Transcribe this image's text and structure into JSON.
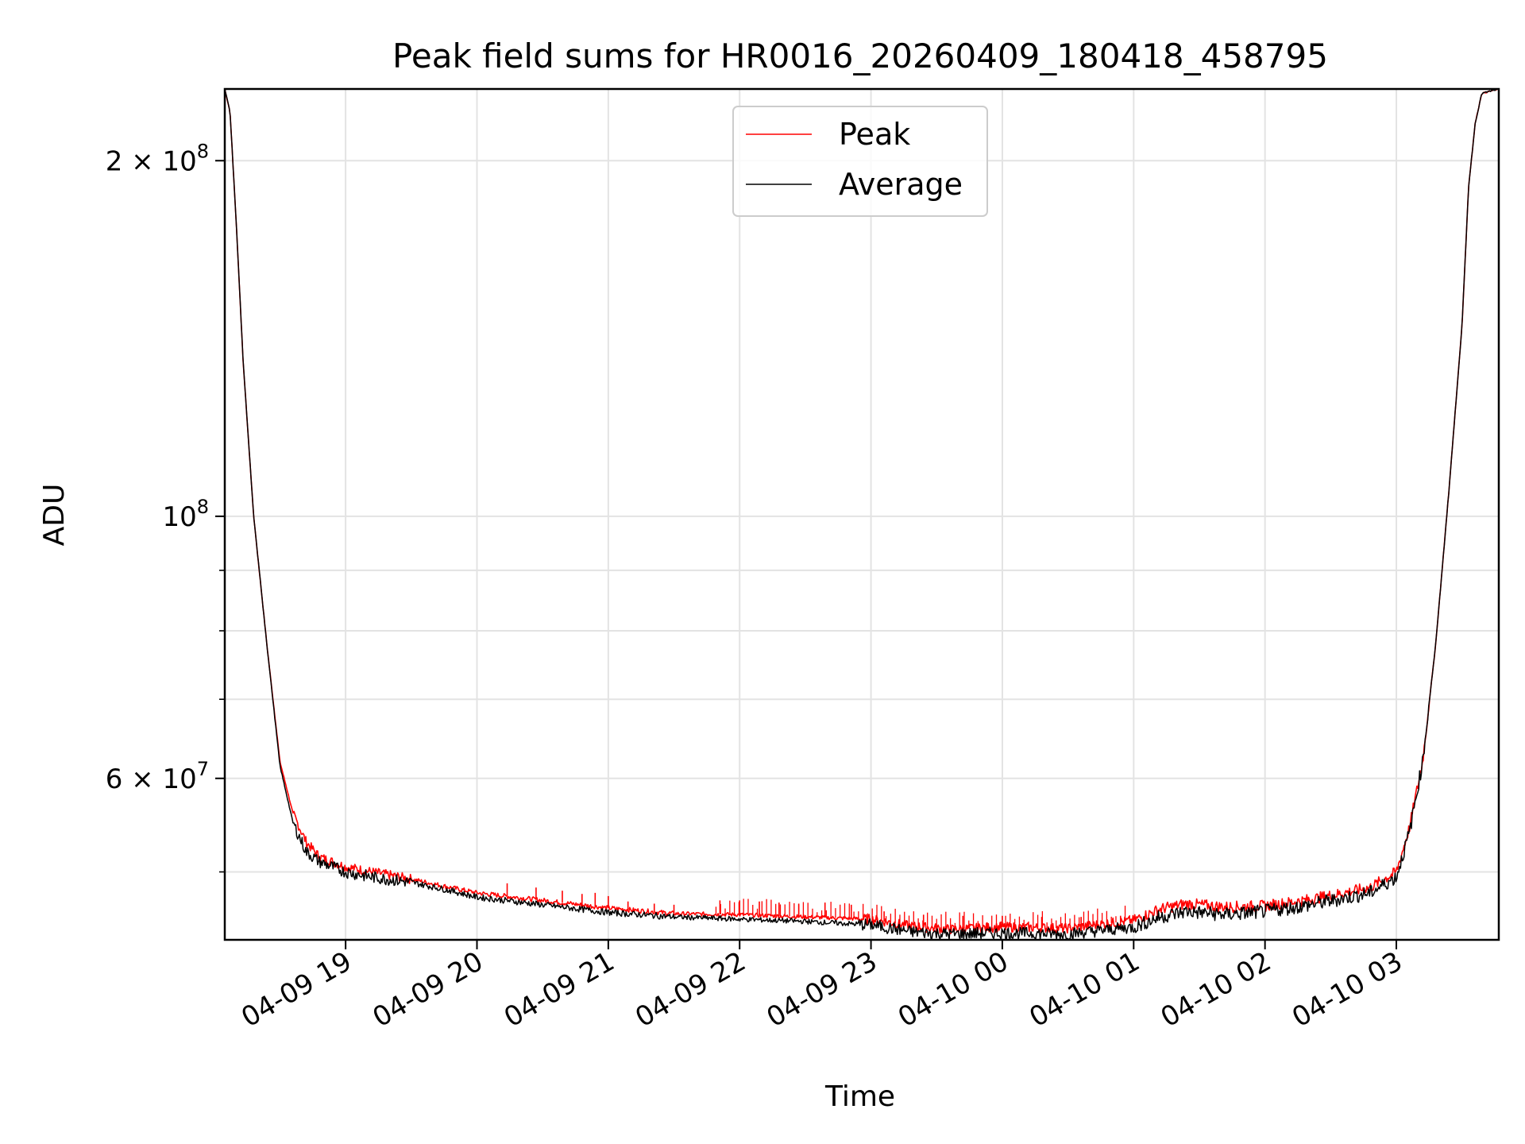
{
  "chart_data": {
    "type": "line",
    "title": "Peak field sums for HR0016_20260409_180418_458795",
    "xlabel": "Time",
    "ylabel": "ADU",
    "yscale": "log",
    "ylim": [
      43800000,
      230000000
    ],
    "xlim_hours": [
      18.08,
      27.78
    ],
    "grid": true,
    "legend_position": "top-center",
    "x_ticks": [
      {
        "h": 19,
        "label": "04-09 19"
      },
      {
        "h": 20,
        "label": "04-09 20"
      },
      {
        "h": 21,
        "label": "04-09 21"
      },
      {
        "h": 22,
        "label": "04-09 22"
      },
      {
        "h": 23,
        "label": "04-09 23"
      },
      {
        "h": 24,
        "label": "04-10 00"
      },
      {
        "h": 25,
        "label": "04-10 01"
      },
      {
        "h": 26,
        "label": "04-10 02"
      },
      {
        "h": 27,
        "label": "04-10 03"
      }
    ],
    "y_major_ticks": [
      {
        "value": 200000000,
        "base": "2 × 10",
        "exp": "8"
      },
      {
        "value": 100000000,
        "base": "10",
        "exp": "8"
      },
      {
        "value": 60000000,
        "base": "6 × 10",
        "exp": "7"
      }
    ],
    "y_minor_ticks": [
      50000000,
      70000000,
      80000000,
      90000000
    ],
    "series": [
      {
        "name": "Peak",
        "color": "#ff0000",
        "hours": [
          18.08,
          18.12,
          18.17,
          18.22,
          18.3,
          18.4,
          18.5,
          18.6,
          18.7,
          18.8,
          18.9,
          19.0,
          19.2,
          19.5,
          19.8,
          20.0,
          20.5,
          21.0,
          21.5,
          22.0,
          22.5,
          23.0,
          23.3,
          23.6,
          24.0,
          24.5,
          25.0,
          25.2,
          25.4,
          25.7,
          26.0,
          26.3,
          26.6,
          26.8,
          27.0,
          27.1,
          27.2,
          27.3,
          27.4,
          27.5,
          27.55,
          27.6,
          27.65,
          27.78
        ],
        "values": [
          230000000,
          220000000,
          175000000,
          135000000,
          100000000,
          78000000,
          62000000,
          56000000,
          53000000,
          51500000,
          51000000,
          50500000,
          50000000,
          49300000,
          48500000,
          48000000,
          47300000,
          46600000,
          46100000,
          46000000,
          45800000,
          45600000,
          45000000,
          44700000,
          44900000,
          44800000,
          45500000,
          46500000,
          47000000,
          46700000,
          46800000,
          47300000,
          48000000,
          48500000,
          50000000,
          54500000,
          62000000,
          78000000,
          105000000,
          145000000,
          190000000,
          215000000,
          228000000,
          230000000
        ]
      },
      {
        "name": "Average",
        "color": "#000000",
        "hours": [
          18.08,
          18.12,
          18.17,
          18.22,
          18.3,
          18.4,
          18.5,
          18.6,
          18.7,
          18.8,
          18.9,
          19.0,
          19.2,
          19.5,
          19.8,
          20.0,
          20.5,
          21.0,
          21.5,
          22.0,
          22.5,
          23.0,
          23.3,
          23.6,
          24.0,
          24.5,
          25.0,
          25.2,
          25.4,
          25.7,
          26.0,
          26.3,
          26.6,
          26.8,
          27.0,
          27.1,
          27.2,
          27.3,
          27.4,
          27.5,
          27.55,
          27.6,
          27.65,
          27.78
        ],
        "values": [
          230000000,
          220000000,
          175000000,
          135000000,
          100000000,
          78000000,
          61500000,
          55000000,
          52000000,
          51000000,
          50500000,
          50000000,
          49500000,
          49000000,
          48200000,
          47600000,
          46900000,
          46200000,
          45800000,
          45600000,
          45400000,
          45100000,
          44500000,
          44300000,
          44400000,
          44300000,
          44900000,
          45800000,
          46300000,
          46000000,
          46300000,
          46800000,
          47500000,
          48000000,
          49500000,
          54000000,
          62000000,
          78000000,
          105000000,
          145000000,
          190000000,
          215000000,
          228000000,
          230000000
        ]
      }
    ],
    "peak_spikes": [
      {
        "h": 20.23,
        "v": 48900000
      },
      {
        "h": 20.45,
        "v": 48500000
      },
      {
        "h": 20.65,
        "v": 48200000
      },
      {
        "h": 20.8,
        "v": 47900000
      },
      {
        "h": 20.9,
        "v": 48000000
      },
      {
        "h": 21.0,
        "v": 47700000
      },
      {
        "h": 21.15,
        "v": 47200000
      },
      {
        "h": 21.35,
        "v": 47000000
      },
      {
        "h": 21.5,
        "v": 46900000
      },
      {
        "h": 21.85,
        "v": 47300000
      },
      {
        "h": 22.0,
        "v": 47300000
      },
      {
        "h": 22.15,
        "v": 47200000
      },
      {
        "h": 22.3,
        "v": 47100000
      },
      {
        "h": 22.45,
        "v": 47000000
      },
      {
        "h": 22.65,
        "v": 47100000
      },
      {
        "h": 22.85,
        "v": 46900000
      },
      {
        "h": 23.1,
        "v": 46300000
      },
      {
        "h": 23.4,
        "v": 46000000
      },
      {
        "h": 23.7,
        "v": 45900000
      },
      {
        "h": 24.0,
        "v": 45900000
      },
      {
        "h": 24.3,
        "v": 45800000
      },
      {
        "h": 24.6,
        "v": 45800000
      },
      {
        "h": 24.9,
        "v": 45900000
      }
    ]
  }
}
